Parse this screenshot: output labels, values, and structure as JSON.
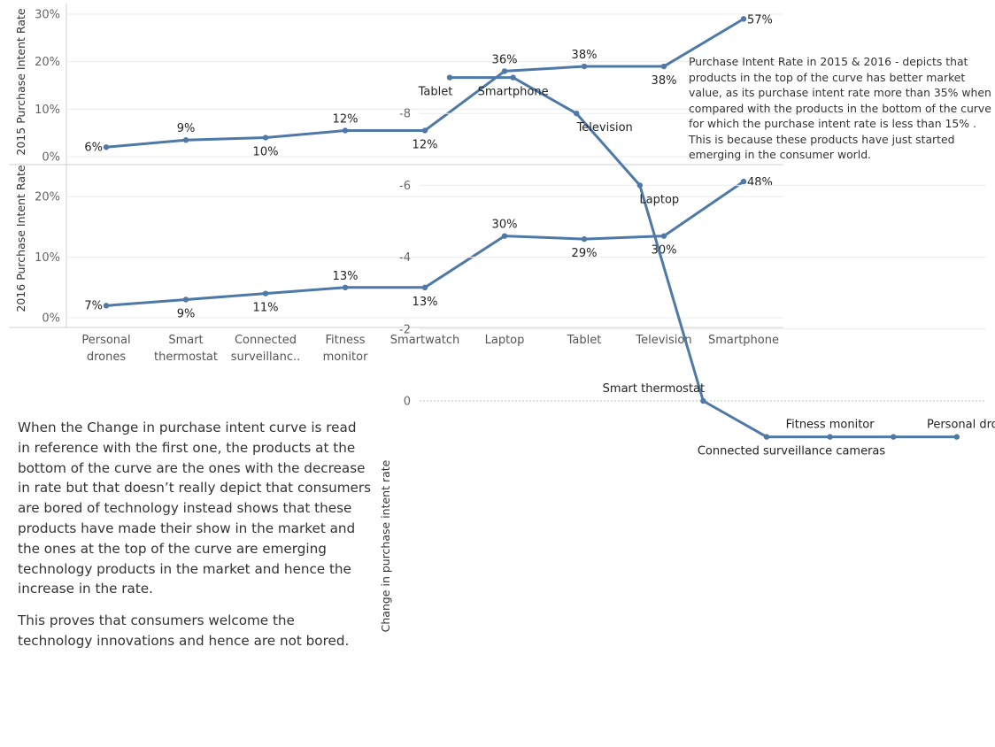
{
  "chart_data": [
    {
      "type": "line",
      "panel": "2015",
      "ylabel": "2015 Purchase Intent Rate",
      "yticks": [
        "30%",
        "20%",
        "10%",
        "0%"
      ],
      "ylim": [
        0,
        30
      ],
      "categories": [
        "Personal drones",
        "Smart thermostat",
        "Connected surveillance cameras",
        "Fitness monitor",
        "Smartwatch",
        "Laptop",
        "Tablet",
        "Television",
        "Smartphone"
      ],
      "values": [
        2,
        3.5,
        4,
        5.5,
        5.5,
        18,
        19,
        19,
        29
      ],
      "labels": [
        "6%",
        "9%",
        "10%",
        "12%",
        "12%",
        "36%",
        "38%",
        "38%",
        "57%"
      ],
      "label_pos": [
        "left",
        "above",
        "below",
        "above",
        "below",
        "above",
        "above",
        "below",
        "right"
      ]
    },
    {
      "type": "line",
      "panel": "2016",
      "ylabel": "2016 Purchase Intent Rate",
      "yticks": [
        "20%",
        "10%",
        "0%"
      ],
      "ylim": [
        0,
        25
      ],
      "categories": [
        "Personal drones",
        "Smart thermostat",
        "Connected surveillance cameras",
        "Fitness monitor",
        "Smartwatch",
        "Laptop",
        "Tablet",
        "Television",
        "Smartphone"
      ],
      "x_tick_labels": [
        [
          "Personal",
          "drones"
        ],
        [
          "Smart",
          "thermostat"
        ],
        [
          "Connected",
          "surveillanc.."
        ],
        [
          "Fitness",
          "monitor"
        ],
        [
          "Smartwatch"
        ],
        [
          "Laptop"
        ],
        [
          "Tablet"
        ],
        [
          "Television"
        ],
        [
          "Smartphone"
        ]
      ],
      "values": [
        2,
        3,
        4,
        5,
        5,
        13.5,
        13,
        13.5,
        22.5
      ],
      "labels": [
        "7%",
        "9%",
        "11%",
        "13%",
        "13%",
        "30%",
        "29%",
        "30%",
        "48%"
      ],
      "label_pos": [
        "left",
        "below",
        "below",
        "above",
        "below",
        "above",
        "below",
        "below",
        "right"
      ]
    },
    {
      "type": "line",
      "panel": "change",
      "ylabel": "Change in purchase intent rate",
      "yticks": [
        0,
        -2,
        -4,
        -6,
        -8
      ],
      "ylim": [
        -9,
        1
      ],
      "points": [
        {
          "name": "Tablet",
          "y": -9,
          "pos": "below"
        },
        {
          "name": "Smartphone",
          "y": -9,
          "pos": "below"
        },
        {
          "name": "Television",
          "y": -8,
          "pos": "below"
        },
        {
          "name": "Laptop",
          "y": -6,
          "pos": "below"
        },
        {
          "name": "Smart thermostat",
          "y": 0,
          "pos": "above"
        },
        {
          "name": "Connected surveillance cameras",
          "y": 1,
          "pos": "below"
        },
        {
          "name": "Fitness monitor",
          "y": 1,
          "pos": "above"
        },
        {
          "name": "",
          "y": 1,
          "pos": "none"
        },
        {
          "name": "Personal drones",
          "y": 1,
          "pos": "above"
        }
      ]
    }
  ],
  "annotations": {
    "top_right": "Purchase Intent Rate in 2015 & 2016 - depicts that products in the top of the curve has better market value, as its purchase intent rate more than 35% when compared with the products in the bottom of the curve for which the purchase intent rate is less than 15% . This is because these products have just started emerging in the consumer world.",
    "left_p1": "When the Change in purchase intent curve is read in reference with the first one, the products at the bottom of the curve are the ones with the decrease in rate but that doesn’t really depict that consumers are bored of technology instead shows that these products have made their show in the market and the ones at the top of the curve are emerging technology products in the market and hence the increase in the rate.",
    "left_p2": "This proves that consumers welcome the technology innovations and hence are not bored."
  },
  "colors": {
    "line": "#4e79a7",
    "grid": "#ececec",
    "border": "#cfcfcf",
    "zero": "#bbbbbb"
  }
}
